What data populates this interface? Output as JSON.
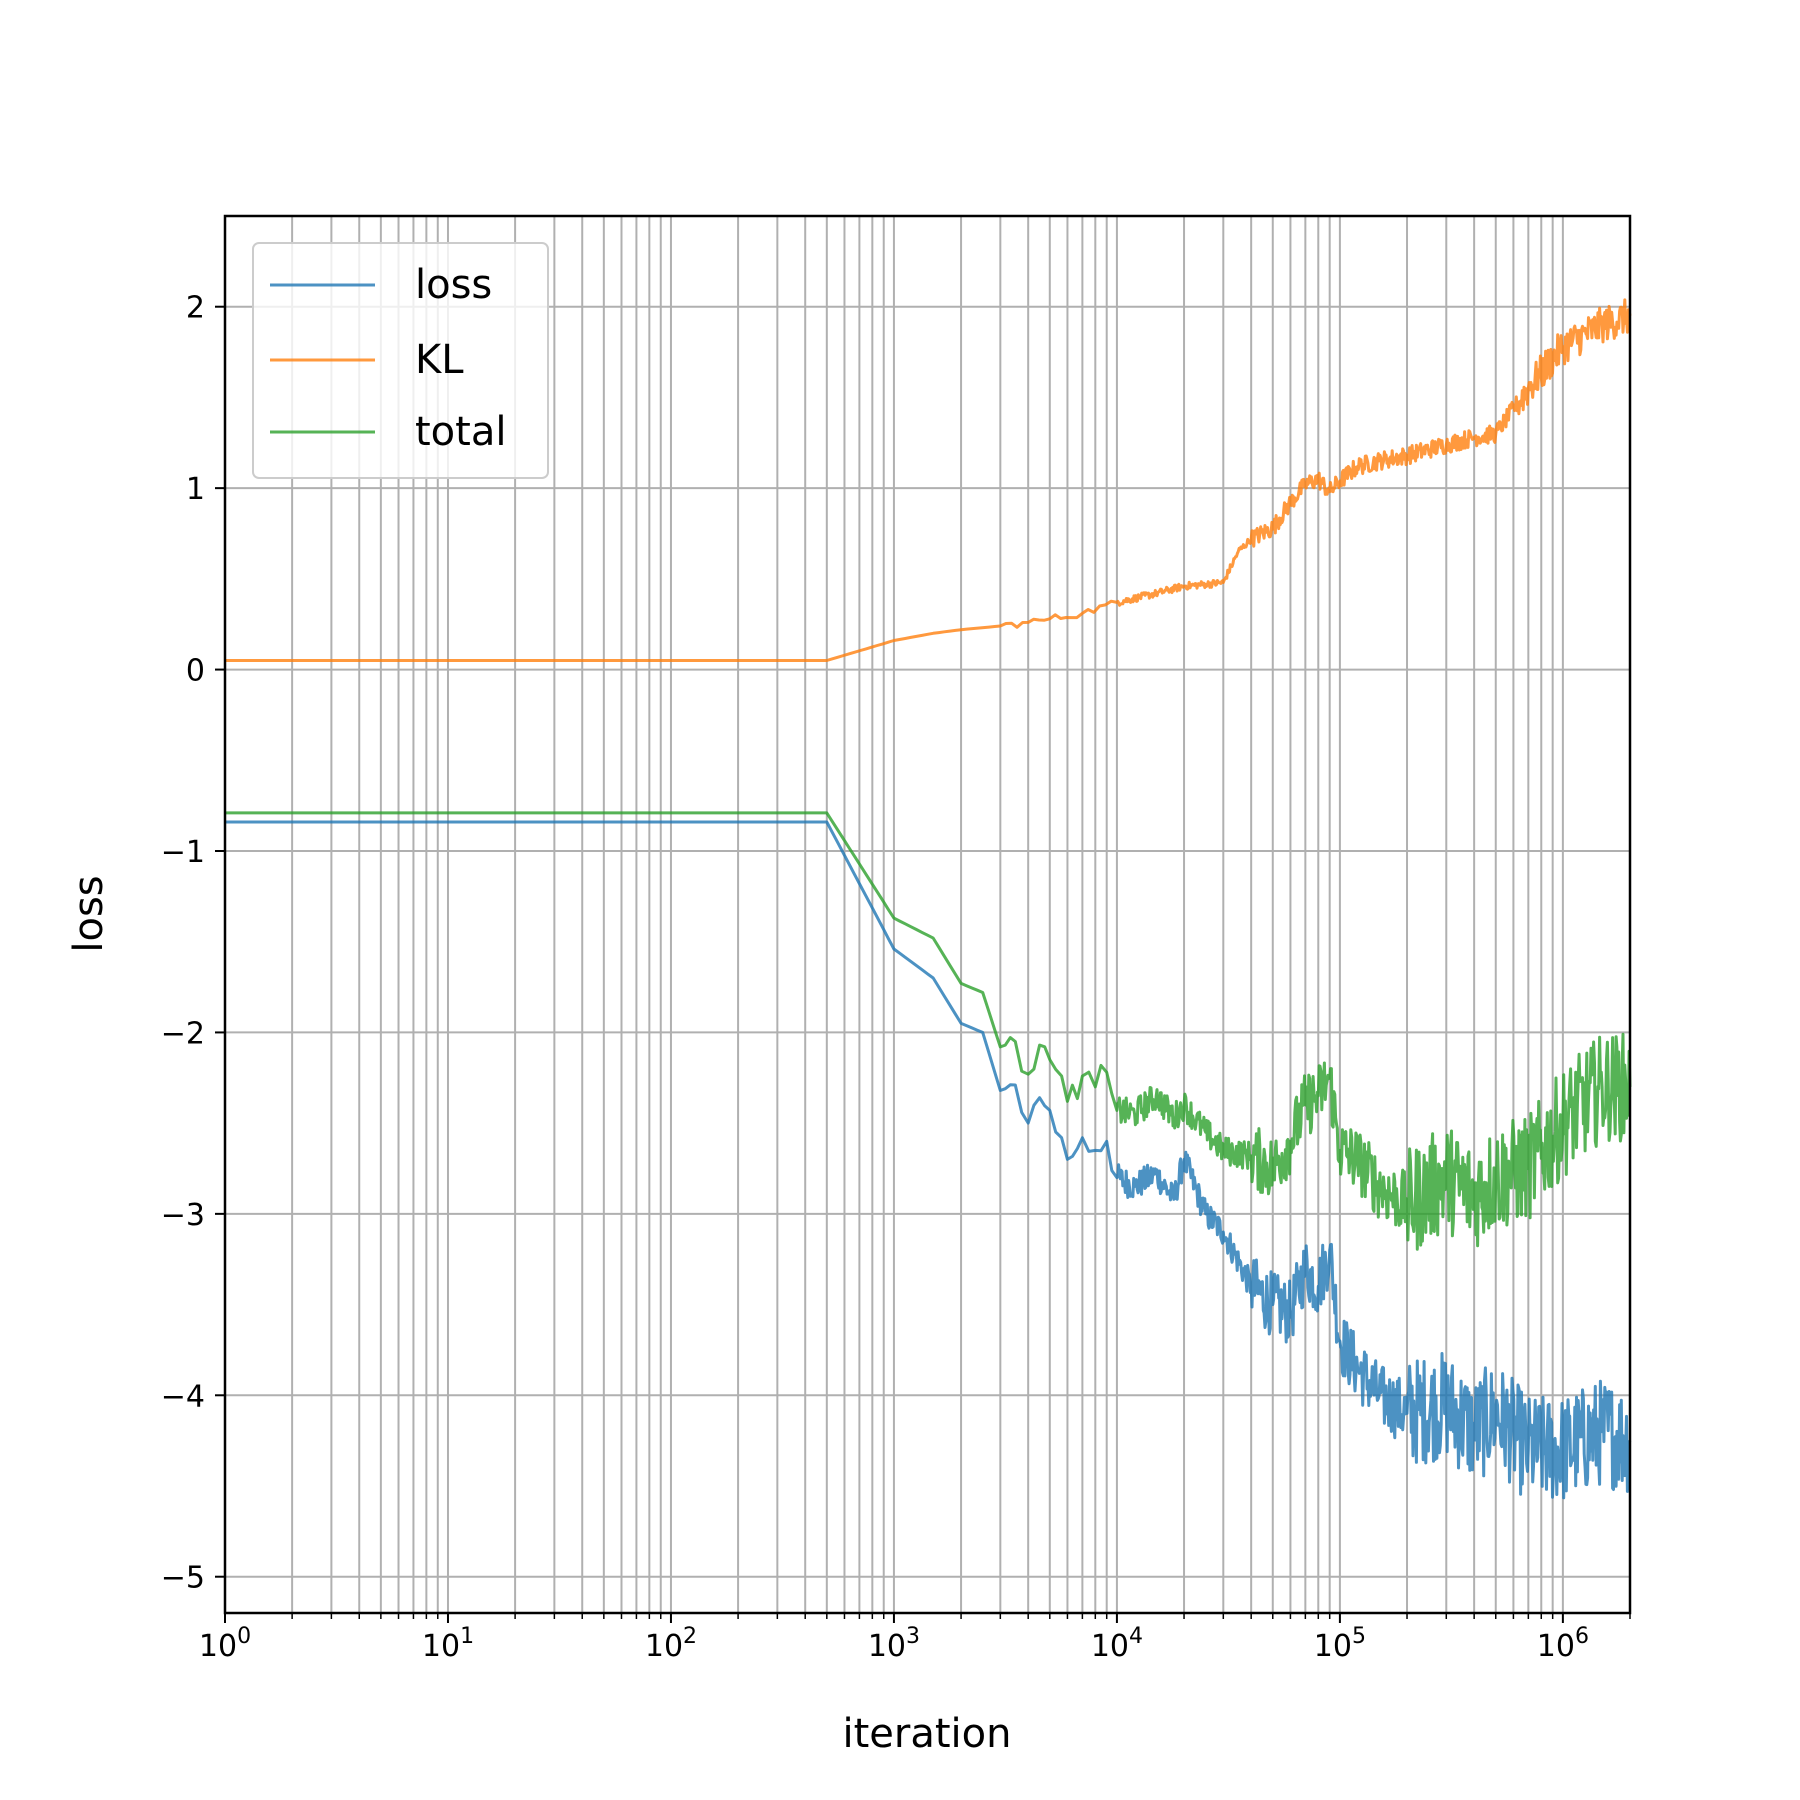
{
  "chart_data": {
    "type": "line",
    "xlabel": "iteration",
    "ylabel": "loss",
    "xscale": "log",
    "xlim": [
      1,
      2000000
    ],
    "ylim": [
      -5.2,
      2.5
    ],
    "grid": "on (major and minor on x)",
    "legend_position": "top-left",
    "x_ticks": [
      {
        "base": "10",
        "exp": "0",
        "value": 1
      },
      {
        "base": "10",
        "exp": "1",
        "value": 10
      },
      {
        "base": "10",
        "exp": "2",
        "value": 100
      },
      {
        "base": "10",
        "exp": "3",
        "value": 1000
      },
      {
        "base": "10",
        "exp": "4",
        "value": 10000
      },
      {
        "base": "10",
        "exp": "5",
        "value": 100000
      },
      {
        "base": "10",
        "exp": "6",
        "value": 1000000
      }
    ],
    "y_ticks": [
      {
        "label": "2",
        "value": 2
      },
      {
        "label": "1",
        "value": 1
      },
      {
        "label": "0",
        "value": 0
      },
      {
        "label": "−1",
        "value": -1
      },
      {
        "label": "−2",
        "value": -2
      },
      {
        "label": "−3",
        "value": -3
      },
      {
        "label": "−4",
        "value": -4
      },
      {
        "label": "−5",
        "value": -5
      }
    ],
    "series": [
      {
        "name": "loss",
        "color": "#1f77b4",
        "points": [
          [
            1,
            -0.84
          ],
          [
            500,
            -0.84
          ],
          [
            1000,
            -1.54
          ],
          [
            1500,
            -1.7
          ],
          [
            2000,
            -1.95
          ],
          [
            2500,
            -2.0
          ],
          [
            3000,
            -2.32
          ],
          [
            3500,
            -2.29
          ],
          [
            4000,
            -2.5
          ],
          [
            4500,
            -2.36
          ],
          [
            5000,
            -2.43
          ],
          [
            6000,
            -2.7
          ],
          [
            7000,
            -2.58
          ],
          [
            8000,
            -2.65
          ],
          [
            9000,
            -2.6
          ],
          [
            10000,
            -2.8
          ],
          [
            12000,
            -2.85
          ],
          [
            15000,
            -2.78
          ],
          [
            18000,
            -2.92
          ],
          [
            20000,
            -2.7
          ],
          [
            25000,
            -3.0
          ],
          [
            30000,
            -3.1
          ],
          [
            40000,
            -3.4
          ],
          [
            50000,
            -3.5
          ],
          [
            60000,
            -3.55
          ],
          [
            70000,
            -3.3
          ],
          [
            80000,
            -3.4
          ],
          [
            90000,
            -3.2
          ],
          [
            100000,
            -3.7
          ],
          [
            120000,
            -3.85
          ],
          [
            150000,
            -4.0
          ],
          [
            200000,
            -4.1
          ],
          [
            300000,
            -4.05
          ],
          [
            400000,
            -4.2
          ],
          [
            500000,
            -4.1
          ],
          [
            700000,
            -4.3
          ],
          [
            1000000,
            -4.3
          ],
          [
            1500000,
            -4.2
          ],
          [
            2000000,
            -4.25
          ]
        ]
      },
      {
        "name": "KL",
        "color": "#ff7f0e",
        "points": [
          [
            1,
            0.05
          ],
          [
            500,
            0.05
          ],
          [
            1000,
            0.16
          ],
          [
            1500,
            0.2
          ],
          [
            2000,
            0.22
          ],
          [
            3000,
            0.24
          ],
          [
            4000,
            0.26
          ],
          [
            5000,
            0.28
          ],
          [
            7000,
            0.31
          ],
          [
            10000,
            0.37
          ],
          [
            15000,
            0.42
          ],
          [
            20000,
            0.46
          ],
          [
            25000,
            0.47
          ],
          [
            30000,
            0.48
          ],
          [
            35000,
            0.65
          ],
          [
            40000,
            0.72
          ],
          [
            50000,
            0.78
          ],
          [
            60000,
            0.92
          ],
          [
            70000,
            1.02
          ],
          [
            80000,
            1.05
          ],
          [
            90000,
            0.98
          ],
          [
            100000,
            1.04
          ],
          [
            120000,
            1.12
          ],
          [
            150000,
            1.15
          ],
          [
            200000,
            1.18
          ],
          [
            300000,
            1.24
          ],
          [
            400000,
            1.28
          ],
          [
            500000,
            1.3
          ],
          [
            700000,
            1.55
          ],
          [
            1000000,
            1.78
          ],
          [
            1500000,
            1.9
          ],
          [
            2000000,
            1.95
          ]
        ]
      },
      {
        "name": "total",
        "color": "#2ca02c",
        "points": [
          [
            1,
            -0.79
          ],
          [
            500,
            -0.79
          ],
          [
            1000,
            -1.37
          ],
          [
            1500,
            -1.48
          ],
          [
            2000,
            -1.73
          ],
          [
            2500,
            -1.78
          ],
          [
            3000,
            -2.08
          ],
          [
            3500,
            -2.05
          ],
          [
            4000,
            -2.23
          ],
          [
            4500,
            -2.07
          ],
          [
            5000,
            -2.15
          ],
          [
            6000,
            -2.38
          ],
          [
            7000,
            -2.24
          ],
          [
            8000,
            -2.3
          ],
          [
            9000,
            -2.22
          ],
          [
            10000,
            -2.43
          ],
          [
            12000,
            -2.45
          ],
          [
            15000,
            -2.35
          ],
          [
            18000,
            -2.47
          ],
          [
            20000,
            -2.4
          ],
          [
            25000,
            -2.55
          ],
          [
            30000,
            -2.65
          ],
          [
            40000,
            -2.68
          ],
          [
            50000,
            -2.75
          ],
          [
            60000,
            -2.6
          ],
          [
            70000,
            -2.4
          ],
          [
            80000,
            -2.35
          ],
          [
            90000,
            -2.25
          ],
          [
            100000,
            -2.65
          ],
          [
            120000,
            -2.7
          ],
          [
            150000,
            -2.85
          ],
          [
            200000,
            -2.95
          ],
          [
            300000,
            -2.8
          ],
          [
            400000,
            -2.9
          ],
          [
            500000,
            -2.8
          ],
          [
            700000,
            -2.75
          ],
          [
            1000000,
            -2.5
          ],
          [
            1500000,
            -2.3
          ],
          [
            2000000,
            -2.3
          ]
        ]
      }
    ]
  }
}
